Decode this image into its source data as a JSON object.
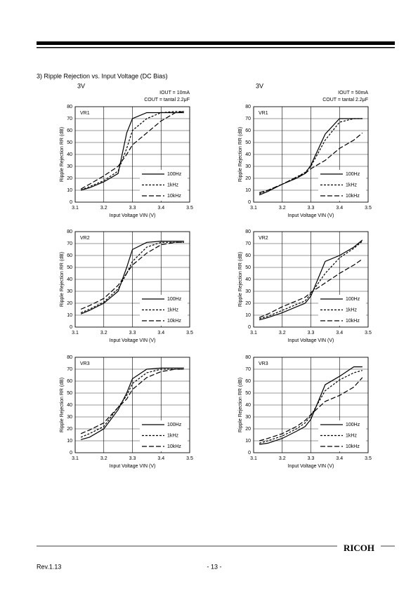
{
  "header": {
    "section": "3)   Ripple Rejection vs. Input Voltage (DC Bias)",
    "col_titles": [
      "3V",
      "3V"
    ],
    "conditions": [
      [
        "IOUT = 10mA",
        "COUT = tantal 2.2μF"
      ],
      [
        "IOUT = 50mA",
        "COUT = tantal 2.2μF"
      ]
    ]
  },
  "chart_data": [
    {
      "type": "line",
      "panel_label": "VR1",
      "x_label": "Input Voltage VIN (V)",
      "y_label": "Ripple Rejection RR (dB)",
      "xlim": [
        3.1,
        3.5
      ],
      "xticks": [
        3.1,
        3.2,
        3.3,
        3.4,
        3.5
      ],
      "ylim": [
        0,
        80
      ],
      "yticks": [
        0,
        10,
        20,
        30,
        40,
        50,
        60,
        70,
        80
      ],
      "grid": true,
      "x": [
        3.12,
        3.15,
        3.2,
        3.25,
        3.28,
        3.3,
        3.35,
        3.4,
        3.45,
        3.48
      ],
      "series": [
        {
          "name": "100Hz",
          "color": "#000000",
          "dash": "solid",
          "values": [
            10,
            12,
            17,
            24,
            58,
            70,
            75,
            75,
            75,
            75
          ]
        },
        {
          "name": "1kHz",
          "color": "#000000",
          "dash": "short",
          "values": [
            10,
            13,
            18,
            26,
            45,
            60,
            70,
            75,
            76,
            76
          ]
        },
        {
          "name": "10kHz",
          "color": "#000000",
          "dash": "long",
          "values": [
            11,
            15,
            22,
            30,
            40,
            48,
            58,
            68,
            75,
            76
          ]
        }
      ]
    },
    {
      "type": "line",
      "panel_label": "VR1",
      "x_label": "Input Voltage VIN (V)",
      "y_label": "Ripple Rejection RR (dB)",
      "xlim": [
        3.1,
        3.5
      ],
      "xticks": [
        3.1,
        3.2,
        3.3,
        3.4,
        3.5
      ],
      "ylim": [
        0,
        80
      ],
      "yticks": [
        0,
        10,
        20,
        30,
        40,
        50,
        60,
        70,
        80
      ],
      "grid": true,
      "x": [
        3.12,
        3.15,
        3.2,
        3.25,
        3.28,
        3.3,
        3.35,
        3.4,
        3.45,
        3.48
      ],
      "series": [
        {
          "name": "100Hz",
          "color": "#000000",
          "dash": "solid",
          "values": [
            6,
            9,
            15,
            20,
            24,
            31,
            57,
            70,
            70,
            70
          ]
        },
        {
          "name": "1kHz",
          "color": "#000000",
          "dash": "short",
          "values": [
            7,
            10,
            15,
            21,
            25,
            30,
            52,
            67,
            70,
            70
          ]
        },
        {
          "name": "10kHz",
          "color": "#000000",
          "dash": "long",
          "values": [
            8,
            10,
            15,
            21,
            24,
            28,
            35,
            45,
            52,
            58
          ]
        }
      ]
    },
    {
      "type": "line",
      "panel_label": "VR2",
      "x_label": "Input Voltage VIN (V)",
      "y_label": "Ripple Rejection RR (dB)",
      "xlim": [
        3.1,
        3.5
      ],
      "xticks": [
        3.1,
        3.2,
        3.3,
        3.4,
        3.5
      ],
      "ylim": [
        0,
        80
      ],
      "yticks": [
        0,
        10,
        20,
        30,
        40,
        50,
        60,
        70,
        80
      ],
      "grid": true,
      "x": [
        3.12,
        3.15,
        3.2,
        3.25,
        3.28,
        3.3,
        3.35,
        3.4,
        3.45,
        3.48
      ],
      "series": [
        {
          "name": "100Hz",
          "color": "#000000",
          "dash": "solid",
          "values": [
            11,
            14,
            20,
            30,
            50,
            65,
            71,
            72,
            72,
            72
          ]
        },
        {
          "name": "1kHz",
          "color": "#000000",
          "dash": "short",
          "values": [
            12,
            15,
            21,
            32,
            45,
            55,
            67,
            71,
            71,
            71
          ]
        },
        {
          "name": "10kHz",
          "color": "#000000",
          "dash": "long",
          "values": [
            15,
            18,
            24,
            35,
            45,
            52,
            62,
            69,
            71,
            71
          ]
        }
      ]
    },
    {
      "type": "line",
      "panel_label": "VR2",
      "x_label": "Input Voltage VIN (V)",
      "y_label": "Ripple Rejection RR (dB)",
      "xlim": [
        3.1,
        3.5
      ],
      "xticks": [
        3.1,
        3.2,
        3.3,
        3.4,
        3.5
      ],
      "ylim": [
        0,
        80
      ],
      "yticks": [
        0,
        10,
        20,
        30,
        40,
        50,
        60,
        70,
        80
      ],
      "grid": true,
      "x": [
        3.12,
        3.15,
        3.2,
        3.25,
        3.28,
        3.3,
        3.35,
        3.4,
        3.45,
        3.48
      ],
      "series": [
        {
          "name": "100Hz",
          "color": "#000000",
          "dash": "solid",
          "values": [
            6,
            8,
            12,
            17,
            20,
            26,
            55,
            60,
            67,
            73
          ]
        },
        {
          "name": "1kHz",
          "color": "#000000",
          "dash": "short",
          "values": [
            7,
            9,
            14,
            19,
            22,
            28,
            45,
            58,
            66,
            72
          ]
        },
        {
          "name": "10kHz",
          "color": "#000000",
          "dash": "long",
          "values": [
            8,
            11,
            17,
            22,
            25,
            29,
            37,
            45,
            52,
            57
          ]
        }
      ]
    },
    {
      "type": "line",
      "panel_label": "VR3",
      "x_label": "Input Voltage VIN (V)",
      "y_label": "Ripple Rejection RR (dB)",
      "xlim": [
        3.1,
        3.5
      ],
      "xticks": [
        3.1,
        3.2,
        3.3,
        3.4,
        3.5
      ],
      "ylim": [
        0,
        80
      ],
      "yticks": [
        0,
        10,
        20,
        30,
        40,
        50,
        60,
        70,
        80
      ],
      "grid": true,
      "x": [
        3.12,
        3.15,
        3.2,
        3.25,
        3.28,
        3.3,
        3.35,
        3.4,
        3.45,
        3.48
      ],
      "series": [
        {
          "name": "100Hz",
          "color": "#000000",
          "dash": "solid",
          "values": [
            11,
            13,
            20,
            36,
            50,
            62,
            70,
            71,
            71,
            71
          ]
        },
        {
          "name": "1kHz",
          "color": "#000000",
          "dash": "short",
          "values": [
            13,
            16,
            22,
            38,
            48,
            58,
            67,
            70,
            70,
            70
          ]
        },
        {
          "name": "10kHz",
          "color": "#000000",
          "dash": "long",
          "values": [
            16,
            19,
            25,
            38,
            45,
            53,
            63,
            68,
            70,
            70
          ]
        }
      ]
    },
    {
      "type": "line",
      "panel_label": "VR3",
      "x_label": "Input Voltage VIN (V)",
      "y_label": "Ripple Rejection RR (dB)",
      "xlim": [
        3.1,
        3.5
      ],
      "xticks": [
        3.1,
        3.2,
        3.3,
        3.4,
        3.5
      ],
      "ylim": [
        0,
        80
      ],
      "yticks": [
        0,
        10,
        20,
        30,
        40,
        50,
        60,
        70,
        80
      ],
      "grid": true,
      "x": [
        3.12,
        3.15,
        3.2,
        3.25,
        3.28,
        3.3,
        3.35,
        3.4,
        3.45,
        3.48
      ],
      "series": [
        {
          "name": "100Hz",
          "color": "#000000",
          "dash": "solid",
          "values": [
            7,
            8,
            12,
            18,
            22,
            28,
            57,
            64,
            72,
            72
          ]
        },
        {
          "name": "1kHz",
          "color": "#000000",
          "dash": "short",
          "values": [
            8,
            10,
            14,
            20,
            25,
            31,
            52,
            61,
            67,
            69
          ]
        },
        {
          "name": "10kHz",
          "color": "#000000",
          "dash": "long",
          "values": [
            10,
            12,
            16,
            22,
            27,
            32,
            43,
            48,
            55,
            63
          ]
        }
      ]
    }
  ],
  "footer": {
    "logo": "RICOH",
    "revision": "Rev.1.13",
    "page": "- 13 -"
  }
}
